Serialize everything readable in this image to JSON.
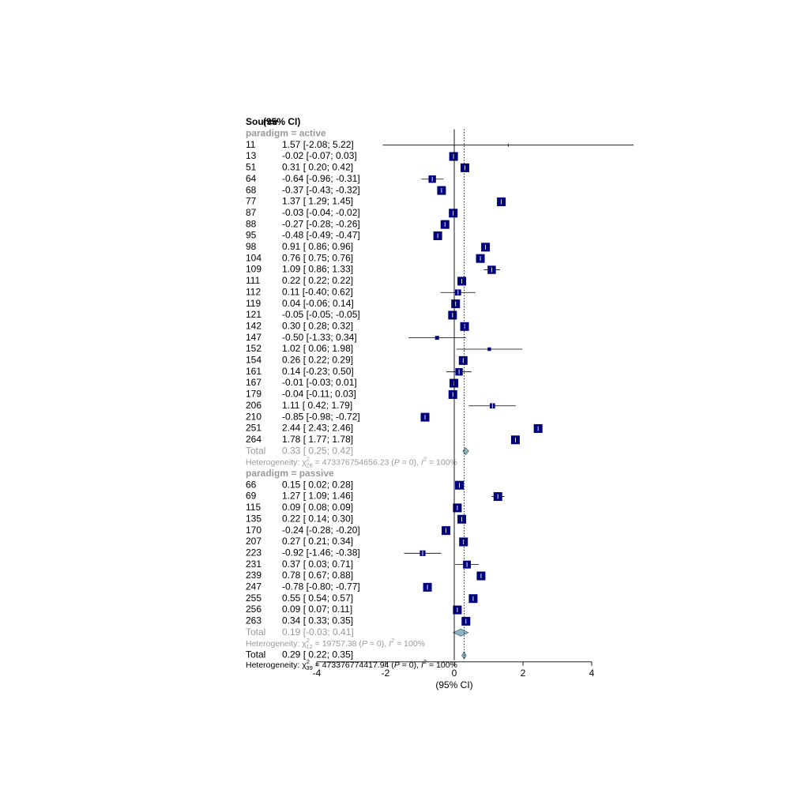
{
  "header": {
    "source": "Source",
    "ci": "(95% CI)"
  },
  "chart_data": {
    "type": "forest",
    "xlabel": "(95% CI)",
    "xlim": [
      -4,
      4
    ],
    "ticks": [
      -4,
      -2,
      0,
      2,
      4
    ],
    "tick_labels": [
      "-4",
      "-2",
      "0",
      "2",
      "4"
    ],
    "reference_line": 0,
    "overall_line": 0.29,
    "colors": {
      "box": "#00007f",
      "group_text": "#999999",
      "diamond_fill": "#8fb5c5",
      "diamond_stroke": "#4f6f80"
    },
    "groups": [
      {
        "label": "paradigm = active",
        "studies": [
          {
            "id": "11",
            "est": 1.57,
            "lo": -2.08,
            "hi": 5.22,
            "ci_text": "1.57 [-2.08;  5.22]",
            "weight": 0.1
          },
          {
            "id": "13",
            "est": -0.02,
            "lo": -0.07,
            "hi": 0.03,
            "ci_text": "-0.02 [-0.07;  0.03]",
            "weight": 1.0
          },
          {
            "id": "51",
            "est": 0.31,
            "lo": 0.2,
            "hi": 0.42,
            "ci_text": "0.31 [ 0.20;  0.42]",
            "weight": 1.0
          },
          {
            "id": "64",
            "est": -0.64,
            "lo": -0.96,
            "hi": -0.31,
            "ci_text": "-0.64 [-0.96; -0.31]",
            "weight": 0.85
          },
          {
            "id": "68",
            "est": -0.37,
            "lo": -0.43,
            "hi": -0.32,
            "ci_text": "-0.37 [-0.43; -0.32]",
            "weight": 1.0
          },
          {
            "id": "77",
            "est": 1.37,
            "lo": 1.29,
            "hi": 1.45,
            "ci_text": "1.37 [ 1.29;  1.45]",
            "weight": 1.0
          },
          {
            "id": "87",
            "est": -0.03,
            "lo": -0.04,
            "hi": -0.02,
            "ci_text": "-0.03 [-0.04; -0.02]",
            "weight": 1.0
          },
          {
            "id": "88",
            "est": -0.27,
            "lo": -0.28,
            "hi": -0.26,
            "ci_text": "-0.27 [-0.28; -0.26]",
            "weight": 1.0
          },
          {
            "id": "95",
            "est": -0.48,
            "lo": -0.49,
            "hi": -0.47,
            "ci_text": "-0.48 [-0.49; -0.47]",
            "weight": 1.0
          },
          {
            "id": "98",
            "est": 0.91,
            "lo": 0.86,
            "hi": 0.96,
            "ci_text": "0.91 [ 0.86;  0.96]",
            "weight": 1.0
          },
          {
            "id": "104",
            "est": 0.76,
            "lo": 0.75,
            "hi": 0.76,
            "ci_text": "0.76 [ 0.75;  0.76]",
            "weight": 1.0
          },
          {
            "id": "109",
            "est": 1.09,
            "lo": 0.86,
            "hi": 1.33,
            "ci_text": "1.09 [ 0.86;  1.33]",
            "weight": 0.95
          },
          {
            "id": "111",
            "est": 0.22,
            "lo": 0.22,
            "hi": 0.22,
            "ci_text": "0.22 [ 0.22;  0.22]",
            "weight": 1.0
          },
          {
            "id": "112",
            "est": 0.11,
            "lo": -0.4,
            "hi": 0.62,
            "ci_text": "0.11 [-0.40;  0.62]",
            "weight": 0.7
          },
          {
            "id": "119",
            "est": 0.04,
            "lo": -0.06,
            "hi": 0.14,
            "ci_text": "0.04 [-0.06;  0.14]",
            "weight": 1.0
          },
          {
            "id": "121",
            "est": -0.05,
            "lo": -0.05,
            "hi": -0.05,
            "ci_text": "-0.05 [-0.05; -0.05]",
            "weight": 1.0
          },
          {
            "id": "142",
            "est": 0.3,
            "lo": 0.28,
            "hi": 0.32,
            "ci_text": "0.30 [ 0.28;  0.32]",
            "weight": 1.0
          },
          {
            "id": "147",
            "est": -0.5,
            "lo": -1.33,
            "hi": 0.34,
            "ci_text": "-0.50 [-1.33;  0.34]",
            "weight": 0.45
          },
          {
            "id": "152",
            "est": 1.02,
            "lo": 0.06,
            "hi": 1.98,
            "ci_text": "1.02 [ 0.06;  1.98]",
            "weight": 0.4
          },
          {
            "id": "154",
            "est": 0.26,
            "lo": 0.22,
            "hi": 0.29,
            "ci_text": "0.26 [ 0.22;  0.29]",
            "weight": 1.0
          },
          {
            "id": "161",
            "est": 0.14,
            "lo": -0.23,
            "hi": 0.5,
            "ci_text": "0.14 [-0.23;  0.50]",
            "weight": 0.85
          },
          {
            "id": "167",
            "est": -0.01,
            "lo": -0.03,
            "hi": 0.01,
            "ci_text": "-0.01 [-0.03;  0.01]",
            "weight": 1.0
          },
          {
            "id": "179",
            "est": -0.04,
            "lo": -0.11,
            "hi": 0.03,
            "ci_text": "-0.04 [-0.11;  0.03]",
            "weight": 1.0
          },
          {
            "id": "206",
            "est": 1.11,
            "lo": 0.42,
            "hi": 1.79,
            "ci_text": "1.11 [ 0.42;  1.79]",
            "weight": 0.6
          },
          {
            "id": "210",
            "est": -0.85,
            "lo": -0.98,
            "hi": -0.72,
            "ci_text": "-0.85 [-0.98; -0.72]",
            "weight": 1.0
          },
          {
            "id": "251",
            "est": 2.44,
            "lo": 2.43,
            "hi": 2.46,
            "ci_text": "2.44 [ 2.43;  2.46]",
            "weight": 1.0
          },
          {
            "id": "264",
            "est": 1.78,
            "lo": 1.77,
            "hi": 1.78,
            "ci_text": "1.78 [ 1.77;  1.78]",
            "weight": 1.0
          }
        ],
        "total": {
          "label": "Total",
          "est": 0.33,
          "lo": 0.25,
          "hi": 0.42,
          "ci_text": "0.33 [ 0.25;  0.42]"
        },
        "heterogeneity": {
          "prefix": "Heterogeneity: ",
          "chi": "χ",
          "sup": "2",
          "sub": "26",
          "rest1": " = 473376754656.23 (",
          "p": "P",
          "rest2": " = 0), ",
          "i": "I",
          "isup": "2",
          "rest3": " = 100%"
        }
      },
      {
        "label": "paradigm = passive",
        "studies": [
          {
            "id": "66",
            "est": 0.15,
            "lo": 0.02,
            "hi": 0.28,
            "ci_text": "0.15 [ 0.02;  0.28]",
            "weight": 1.0
          },
          {
            "id": "69",
            "est": 1.27,
            "lo": 1.09,
            "hi": 1.46,
            "ci_text": "1.27 [ 1.09;  1.46]",
            "weight": 1.0
          },
          {
            "id": "115",
            "est": 0.09,
            "lo": 0.08,
            "hi": 0.09,
            "ci_text": "0.09 [ 0.08;  0.09]",
            "weight": 1.0
          },
          {
            "id": "135",
            "est": 0.22,
            "lo": 0.14,
            "hi": 0.3,
            "ci_text": "0.22 [ 0.14;  0.30]",
            "weight": 1.0
          },
          {
            "id": "170",
            "est": -0.24,
            "lo": -0.28,
            "hi": -0.2,
            "ci_text": "-0.24 [-0.28; -0.20]",
            "weight": 1.0
          },
          {
            "id": "207",
            "est": 0.27,
            "lo": 0.21,
            "hi": 0.34,
            "ci_text": "0.27 [ 0.21;  0.34]",
            "weight": 1.0
          },
          {
            "id": "223",
            "est": -0.92,
            "lo": -1.46,
            "hi": -0.38,
            "ci_text": "-0.92 [-1.46; -0.38]",
            "weight": 0.65
          },
          {
            "id": "231",
            "est": 0.37,
            "lo": 0.03,
            "hi": 0.71,
            "ci_text": "0.37 [ 0.03;  0.71]",
            "weight": 0.9
          },
          {
            "id": "239",
            "est": 0.78,
            "lo": 0.67,
            "hi": 0.88,
            "ci_text": "0.78 [ 0.67;  0.88]",
            "weight": 1.0
          },
          {
            "id": "247",
            "est": -0.78,
            "lo": -0.8,
            "hi": -0.77,
            "ci_text": "-0.78 [-0.80; -0.77]",
            "weight": 1.0
          },
          {
            "id": "255",
            "est": 0.55,
            "lo": 0.54,
            "hi": 0.57,
            "ci_text": "0.55 [ 0.54;  0.57]",
            "weight": 1.0
          },
          {
            "id": "256",
            "est": 0.09,
            "lo": 0.07,
            "hi": 0.11,
            "ci_text": "0.09 [ 0.07;  0.11]",
            "weight": 1.0
          },
          {
            "id": "263",
            "est": 0.34,
            "lo": 0.33,
            "hi": 0.35,
            "ci_text": "0.34 [ 0.33;  0.35]",
            "weight": 1.0
          }
        ],
        "total": {
          "label": "Total",
          "est": 0.19,
          "lo": -0.03,
          "hi": 0.41,
          "ci_text": "0.19 [-0.03;  0.41]"
        },
        "heterogeneity": {
          "prefix": "Heterogeneity: ",
          "chi": "χ",
          "sup": "2",
          "sub": "12",
          "rest1": " = 19757.38 (",
          "p": "P",
          "rest2": " = 0), ",
          "i": "I",
          "isup": "2",
          "rest3": " = 100%"
        }
      }
    ],
    "overall": {
      "label": "Total",
      "est": 0.29,
      "lo": 0.22,
      "hi": 0.35,
      "ci_text": "0.29 [ 0.22;  0.35]",
      "heterogeneity": {
        "prefix": "Heterogeneity: ",
        "chi": "χ",
        "sup": "2",
        "sub": "39",
        "rest1": " = 473376774417.94 (",
        "p": "P",
        "rest2": " = 0), ",
        "i": "I",
        "isup": "2",
        "rest3": " = 100%"
      }
    }
  }
}
